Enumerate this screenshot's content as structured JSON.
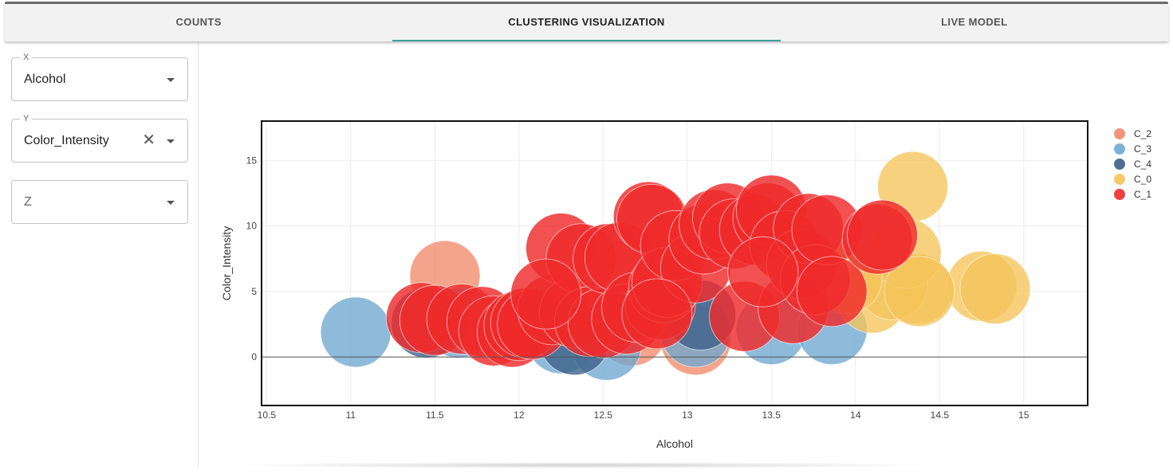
{
  "tabs": [
    {
      "label": "COUNTS",
      "active": false
    },
    {
      "label": "CLUSTERING VISUALIZATION",
      "active": true
    },
    {
      "label": "LIVE MODEL",
      "active": false
    }
  ],
  "controls": {
    "x": {
      "label": "X",
      "value": "Alcohol"
    },
    "y": {
      "label": "Y",
      "value": "Color_Intensity",
      "clear_symbol": "✕"
    },
    "z": {
      "label": "Z",
      "placeholder": "Z"
    }
  },
  "colors": {
    "tab_indicator": "#3e9e9a",
    "C_2": "#ef8a6a",
    "C_3": "#6fa8cf",
    "C_4": "#3c5f86",
    "C_0": "#f5c45a",
    "C_1": "#ef2b2b"
  },
  "chart_data": {
    "type": "scatter",
    "xlabel": "Alcohol",
    "ylabel": "Color_Intensity",
    "xlim": [
      10.47,
      15.38
    ],
    "ylim": [
      -3.7,
      18
    ],
    "xticks": [
      10.5,
      11,
      11.5,
      12,
      12.5,
      13,
      13.5,
      14,
      14.5,
      15
    ],
    "xtick_labels": [
      "10.5",
      "11",
      "11.5",
      "12",
      "12.5",
      "13",
      "13.5",
      "14",
      "14.5",
      "15"
    ],
    "yticks": [
      0,
      5,
      10,
      15
    ],
    "ytick_labels": [
      "0",
      "5",
      "10",
      "15"
    ],
    "grid": true,
    "zero_line": true,
    "legend_position": "right",
    "series": [
      {
        "name": "C_2",
        "x": [
          11.56,
          12.67,
          13.05
        ],
        "y": [
          6.2,
          2.0,
          1.3
        ]
      },
      {
        "name": "C_3",
        "x": [
          11.03,
          11.64,
          12.25,
          12.52,
          13.05,
          13.5,
          13.86
        ],
        "y": [
          1.9,
          2.6,
          1.4,
          0.9,
          1.9,
          2.1,
          2.1
        ]
      },
      {
        "name": "C_4",
        "x": [
          11.45,
          12.33,
          13.08
        ],
        "y": [
          2.6,
          1.3,
          3.2
        ]
      },
      {
        "name": "C_0",
        "x": [
          14.34,
          14.37,
          14.75,
          14.83,
          14.1,
          14.22,
          14.3,
          14.38,
          13.95
        ],
        "y": [
          13.0,
          5.2,
          5.4,
          5.2,
          4.5,
          5.5,
          7.9,
          5.0,
          6.0
        ]
      },
      {
        "name": "C_1",
        "x": [
          11.42,
          11.5,
          11.66,
          11.78,
          11.85,
          11.96,
          12.0,
          12.04,
          12.08,
          12.2,
          12.25,
          12.33,
          12.37,
          12.42,
          12.5,
          12.53,
          12.6,
          12.64,
          12.7,
          12.77,
          12.79,
          12.84,
          12.86,
          12.88,
          12.93,
          13.05,
          13.1,
          13.16,
          13.24,
          13.28,
          13.34,
          13.4,
          13.48,
          13.5,
          13.58,
          13.63,
          13.68,
          13.72,
          13.76,
          13.83,
          13.86,
          14.13,
          14.16,
          12.16,
          12.82,
          13.45
        ],
        "y": [
          3.0,
          2.8,
          2.9,
          2.7,
          2.0,
          1.9,
          2.4,
          2.6,
          2.5,
          3.6,
          8.3,
          3.4,
          7.5,
          2.7,
          2.6,
          7.5,
          7.6,
          2.9,
          3.8,
          10.7,
          10.5,
          4.0,
          5.3,
          5.7,
          8.5,
          6.8,
          9.0,
          10.1,
          10.6,
          9.4,
          3.1,
          9.7,
          10.6,
          11.2,
          8.5,
          3.7,
          7.1,
          9.8,
          5.9,
          9.7,
          5.0,
          9.0,
          9.3,
          4.8,
          3.3,
          6.5
        ]
      }
    ]
  }
}
